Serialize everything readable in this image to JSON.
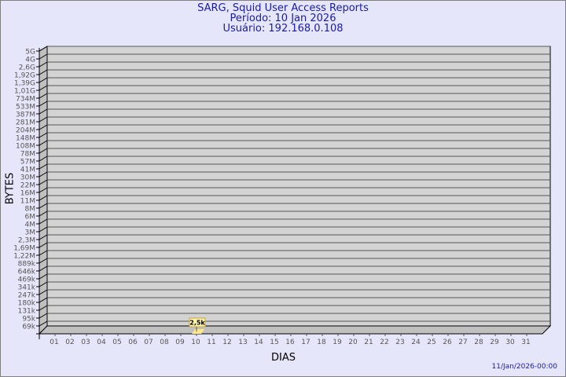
{
  "header": {
    "title": "SARG, Squid User Access Reports",
    "period": "Período: 10 Jan 2026",
    "user": "Usuário: 192.168.0.108"
  },
  "footer": {
    "timestamp": "11/Jan/2026-00:00"
  },
  "colors": {
    "background": "#e6e6fa",
    "plot": "#d3d3d3",
    "title": "#1a1aa6",
    "bar": "#ffe88a"
  },
  "chart_data": {
    "type": "bar",
    "title": "SARG, Squid User Access Reports",
    "xlabel": "DIAS",
    "ylabel": "BYTES",
    "y_scale": "log",
    "y_ticks": [
      "5G",
      "4G",
      "2,6G",
      "1,92G",
      "1,39G",
      "1,01G",
      "734M",
      "533M",
      "387M",
      "281M",
      "204M",
      "148M",
      "108M",
      "78M",
      "57M",
      "41M",
      "30M",
      "22M",
      "16M",
      "11M",
      "8M",
      "6M",
      "4M",
      "3M",
      "2,3M",
      "1,69M",
      "1,22M",
      "889k",
      "646k",
      "469k",
      "341k",
      "247k",
      "180k",
      "131k",
      "95k",
      "69k"
    ],
    "categories": [
      "01",
      "02",
      "03",
      "04",
      "05",
      "06",
      "07",
      "08",
      "09",
      "10",
      "11",
      "12",
      "13",
      "14",
      "15",
      "16",
      "17",
      "18",
      "19",
      "20",
      "21",
      "22",
      "23",
      "24",
      "25",
      "26",
      "27",
      "28",
      "29",
      "30",
      "31"
    ],
    "points": [
      {
        "x": "10",
        "value": 2500,
        "label": "2,5k"
      }
    ],
    "grid": true
  }
}
